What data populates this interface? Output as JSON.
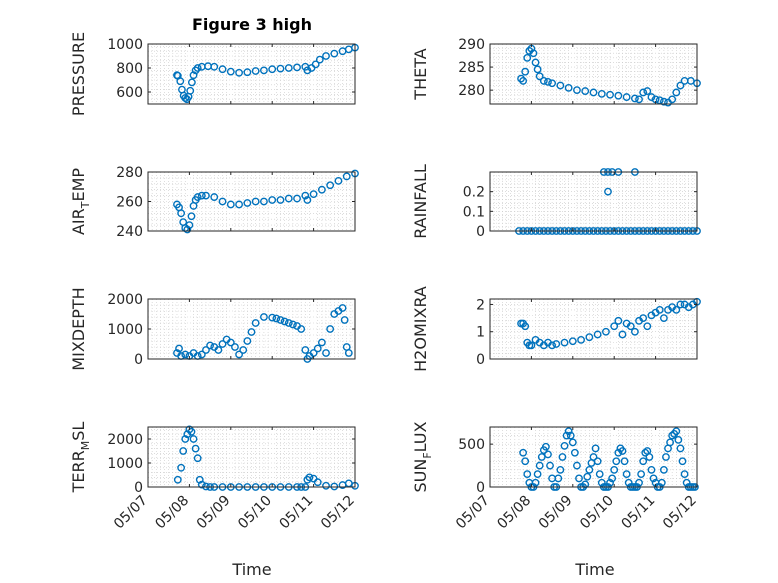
{
  "figure": {
    "title": "Figure 3 high",
    "xlabel": "Time"
  },
  "colors": {
    "marker": "#0072bd",
    "grid": "#c8c8c8",
    "axis": "#262626"
  },
  "chart_data": [
    {
      "type": "scatter",
      "title": "Figure 3 high",
      "ylabel": "PRESSURE",
      "xlabel": "",
      "xlim": [
        0,
        5
      ],
      "ylim": [
        500,
        1000
      ],
      "yticks": [
        {
          "v": 600,
          "t": "600"
        },
        {
          "v": 800,
          "t": "800"
        },
        {
          "v": 1000,
          "t": "1000"
        }
      ],
      "xticks": [
        "05/07",
        "05/08",
        "05/09",
        "05/10",
        "05/11",
        "05/12"
      ],
      "show_x_labels": false,
      "grid": true,
      "x": [
        0.7,
        0.72,
        0.78,
        0.82,
        0.86,
        0.9,
        0.94,
        0.98,
        1.02,
        1.06,
        1.1,
        1.15,
        1.2,
        1.3,
        1.45,
        1.6,
        1.8,
        2.0,
        2.2,
        2.4,
        2.6,
        2.8,
        3.0,
        3.2,
        3.4,
        3.6,
        3.8,
        3.85,
        3.95,
        4.05,
        4.15,
        4.3,
        4.5,
        4.7,
        4.85,
        5.0
      ],
      "y": [
        740,
        735,
        690,
        620,
        570,
        550,
        540,
        560,
        610,
        680,
        740,
        780,
        800,
        810,
        815,
        810,
        790,
        770,
        760,
        765,
        775,
        780,
        790,
        795,
        800,
        805,
        810,
        780,
        800,
        830,
        870,
        900,
        920,
        940,
        955,
        970
      ]
    },
    {
      "type": "scatter",
      "ylabel": "THETA",
      "xlabel": "",
      "xlim": [
        0,
        5
      ],
      "ylim": [
        277,
        290
      ],
      "yticks": [
        {
          "v": 280,
          "t": "280"
        },
        {
          "v": 285,
          "t": "285"
        },
        {
          "v": 290,
          "t": "290"
        }
      ],
      "xticks": [
        "05/07",
        "05/08",
        "05/09",
        "05/10",
        "05/11",
        "05/12"
      ],
      "show_x_labels": false,
      "grid": true,
      "x": [
        0.75,
        0.8,
        0.85,
        0.9,
        0.95,
        1.0,
        1.05,
        1.1,
        1.15,
        1.2,
        1.3,
        1.4,
        1.5,
        1.7,
        1.9,
        2.1,
        2.3,
        2.5,
        2.7,
        2.9,
        3.1,
        3.3,
        3.5,
        3.6,
        3.7,
        3.8,
        3.9,
        4.0,
        4.1,
        4.2,
        4.3,
        4.4,
        4.5,
        4.6,
        4.7,
        4.85,
        5.0
      ],
      "y": [
        282.5,
        282.0,
        284.0,
        287.0,
        288.5,
        289.0,
        288.0,
        286.0,
        284.5,
        283.0,
        282.0,
        281.8,
        281.5,
        281.0,
        280.5,
        280.0,
        279.8,
        279.5,
        279.2,
        279.0,
        278.8,
        278.5,
        278.2,
        278.0,
        279.5,
        279.8,
        278.5,
        278.0,
        277.8,
        277.5,
        277.3,
        278.0,
        279.5,
        281.0,
        282.0,
        282.0,
        281.5
      ]
    },
    {
      "type": "scatter",
      "ylabel": "AIR_TEMP",
      "xlabel": "",
      "xlim": [
        0,
        5
      ],
      "ylim": [
        240,
        280
      ],
      "yticks": [
        {
          "v": 240,
          "t": "240"
        },
        {
          "v": 260,
          "t": "260"
        },
        {
          "v": 280,
          "t": "280"
        }
      ],
      "xticks": [
        "05/07",
        "05/08",
        "05/09",
        "05/10",
        "05/11",
        "05/12"
      ],
      "show_x_labels": false,
      "grid": true,
      "x": [
        0.7,
        0.75,
        0.8,
        0.85,
        0.9,
        0.95,
        1.0,
        1.05,
        1.1,
        1.15,
        1.2,
        1.3,
        1.4,
        1.6,
        1.8,
        2.0,
        2.2,
        2.4,
        2.6,
        2.8,
        3.0,
        3.2,
        3.4,
        3.6,
        3.8,
        3.85,
        4.0,
        4.2,
        4.4,
        4.6,
        4.8,
        5.0
      ],
      "y": [
        258,
        256,
        252,
        246,
        242,
        241,
        244,
        250,
        257,
        261,
        263,
        264,
        264,
        263,
        260,
        258,
        258,
        259,
        260,
        260,
        261,
        261,
        262,
        262,
        264,
        261,
        265,
        268,
        271,
        274,
        277,
        279
      ]
    },
    {
      "type": "scatter",
      "ylabel": "RAINFALL",
      "xlabel": "",
      "xlim": [
        0,
        5
      ],
      "ylim": [
        0,
        0.3
      ],
      "yticks": [
        {
          "v": 0,
          "t": "0"
        },
        {
          "v": 0.1,
          "t": "0.1"
        },
        {
          "v": 0.2,
          "t": "0.2"
        }
      ],
      "xticks": [
        "05/07",
        "05/08",
        "05/09",
        "05/10",
        "05/11",
        "05/12"
      ],
      "show_x_labels": false,
      "grid": true,
      "x": [
        0.7,
        0.8,
        0.9,
        1.0,
        1.1,
        1.2,
        1.3,
        1.4,
        1.5,
        1.6,
        1.7,
        1.8,
        1.9,
        2.0,
        2.1,
        2.2,
        2.3,
        2.4,
        2.5,
        2.6,
        2.7,
        2.8,
        2.9,
        3.0,
        3.1,
        3.2,
        3.3,
        3.4,
        3.5,
        3.6,
        3.7,
        3.8,
        3.9,
        4.0,
        4.1,
        4.2,
        4.3,
        4.4,
        4.5,
        4.6,
        4.7,
        4.8,
        4.9,
        5.0,
        2.75,
        2.85,
        2.95,
        3.1,
        3.5,
        2.85
      ],
      "y": [
        0,
        0,
        0,
        0,
        0,
        0,
        0,
        0,
        0,
        0,
        0,
        0,
        0,
        0,
        0,
        0,
        0,
        0,
        0,
        0,
        0,
        0,
        0,
        0,
        0,
        0,
        0,
        0,
        0,
        0,
        0,
        0,
        0,
        0,
        0,
        0,
        0,
        0,
        0,
        0,
        0,
        0,
        0,
        0,
        0.3,
        0.3,
        0.3,
        0.3,
        0.3,
        0.2
      ]
    },
    {
      "type": "scatter",
      "ylabel": "MIXDEPTH",
      "xlabel": "",
      "xlim": [
        0,
        5
      ],
      "ylim": [
        0,
        2000
      ],
      "yticks": [
        {
          "v": 0,
          "t": "0"
        },
        {
          "v": 1000,
          "t": "1000"
        },
        {
          "v": 2000,
          "t": "2000"
        }
      ],
      "xticks": [
        "05/07",
        "05/08",
        "05/09",
        "05/10",
        "05/11",
        "05/12"
      ],
      "show_x_labels": false,
      "grid": true,
      "x": [
        0.7,
        0.75,
        0.8,
        0.9,
        1.0,
        1.1,
        1.2,
        1.3,
        1.4,
        1.5,
        1.6,
        1.7,
        1.8,
        1.9,
        2.0,
        2.1,
        2.2,
        2.3,
        2.4,
        2.5,
        2.6,
        2.8,
        3.0,
        3.1,
        3.2,
        3.3,
        3.4,
        3.5,
        3.6,
        3.7,
        3.8,
        3.85,
        3.9,
        4.0,
        4.1,
        4.2,
        4.3,
        4.4,
        4.5,
        4.6,
        4.7,
        4.75,
        4.8,
        4.85
      ],
      "y": [
        200,
        350,
        100,
        150,
        100,
        200,
        100,
        150,
        300,
        450,
        400,
        300,
        500,
        650,
        550,
        400,
        150,
        300,
        600,
        900,
        1200,
        1400,
        1380,
        1350,
        1300,
        1250,
        1200,
        1150,
        1100,
        1000,
        300,
        0,
        100,
        200,
        350,
        550,
        200,
        1000,
        1500,
        1600,
        1700,
        1300,
        400,
        200
      ]
    },
    {
      "type": "scatter",
      "ylabel": "H2OMIXRA",
      "xlabel": "",
      "xlim": [
        0,
        5
      ],
      "ylim": [
        0,
        2.2
      ],
      "yticks": [
        {
          "v": 0,
          "t": "0"
        },
        {
          "v": 1,
          "t": "1"
        },
        {
          "v": 2,
          "t": "2"
        }
      ],
      "xticks": [
        "05/07",
        "05/08",
        "05/09",
        "05/10",
        "05/11",
        "05/12"
      ],
      "show_x_labels": false,
      "grid": true,
      "x": [
        0.75,
        0.8,
        0.85,
        0.9,
        0.95,
        1.0,
        1.1,
        1.2,
        1.3,
        1.4,
        1.5,
        1.6,
        1.8,
        2.0,
        2.2,
        2.4,
        2.6,
        2.8,
        3.0,
        3.1,
        3.2,
        3.3,
        3.4,
        3.5,
        3.6,
        3.7,
        3.8,
        3.9,
        4.0,
        4.1,
        4.2,
        4.3,
        4.4,
        4.5,
        4.6,
        4.7,
        4.8,
        4.9,
        5.0
      ],
      "y": [
        1.3,
        1.3,
        1.2,
        0.6,
        0.5,
        0.5,
        0.7,
        0.6,
        0.5,
        0.6,
        0.5,
        0.55,
        0.6,
        0.65,
        0.7,
        0.8,
        0.9,
        1.0,
        1.2,
        1.4,
        0.9,
        1.3,
        1.2,
        1.0,
        1.4,
        1.5,
        1.2,
        1.6,
        1.7,
        1.8,
        1.5,
        1.8,
        1.9,
        1.8,
        2.0,
        2.0,
        1.9,
        2.0,
        2.1
      ]
    },
    {
      "type": "scatter",
      "ylabel": "TERR_MSL",
      "xlabel": "Time",
      "xlim": [
        0,
        5
      ],
      "ylim": [
        0,
        2500
      ],
      "yticks": [
        {
          "v": 0,
          "t": "0"
        },
        {
          "v": 1000,
          "t": "1000"
        },
        {
          "v": 2000,
          "t": "2000"
        }
      ],
      "xticks": [
        "05/07",
        "05/08",
        "05/09",
        "05/10",
        "05/11",
        "05/12"
      ],
      "show_x_labels": true,
      "grid": true,
      "x": [
        0.72,
        0.8,
        0.85,
        0.9,
        0.95,
        1.0,
        1.05,
        1.1,
        1.15,
        1.2,
        1.25,
        1.3,
        1.4,
        1.5,
        1.6,
        1.8,
        2.0,
        2.2,
        2.4,
        2.6,
        2.8,
        3.0,
        3.2,
        3.4,
        3.6,
        3.7,
        3.8,
        3.85,
        3.9,
        4.0,
        4.1,
        4.3,
        4.5,
        4.7,
        4.85,
        5.0
      ],
      "y": [
        300,
        800,
        1500,
        2000,
        2200,
        2400,
        2300,
        2000,
        1600,
        1200,
        300,
        100,
        20,
        0,
        0,
        0,
        0,
        0,
        0,
        0,
        0,
        0,
        0,
        0,
        0,
        0,
        0,
        300,
        400,
        350,
        200,
        50,
        20,
        80,
        150,
        50
      ]
    },
    {
      "type": "scatter",
      "ylabel": "SUN_FLUX",
      "xlabel": "Time",
      "xlim": [
        0,
        5
      ],
      "ylim": [
        0,
        700
      ],
      "yticks": [
        {
          "v": 0,
          "t": "0"
        },
        {
          "v": 500,
          "t": "500"
        }
      ],
      "xticks": [
        "05/07",
        "05/08",
        "05/09",
        "05/10",
        "05/11",
        "05/12"
      ],
      "show_x_labels": true,
      "grid": true,
      "x": [
        0.8,
        0.85,
        0.9,
        0.95,
        1.0,
        1.05,
        1.1,
        1.15,
        1.2,
        1.25,
        1.3,
        1.35,
        1.4,
        1.45,
        1.5,
        1.55,
        1.6,
        1.65,
        1.7,
        1.75,
        1.8,
        1.85,
        1.9,
        1.95,
        2.0,
        2.05,
        2.1,
        2.15,
        2.2,
        2.25,
        2.3,
        2.35,
        2.4,
        2.45,
        2.5,
        2.55,
        2.6,
        2.65,
        2.7,
        2.75,
        2.8,
        2.85,
        2.9,
        2.95,
        3.0,
        3.05,
        3.1,
        3.15,
        3.2,
        3.25,
        3.3,
        3.35,
        3.4,
        3.45,
        3.5,
        3.55,
        3.6,
        3.65,
        3.7,
        3.75,
        3.8,
        3.85,
        3.9,
        3.95,
        4.0,
        4.05,
        4.1,
        4.15,
        4.2,
        4.25,
        4.3,
        4.35,
        4.4,
        4.45,
        4.5,
        4.55,
        4.6,
        4.65,
        4.7,
        4.75,
        4.8,
        4.85,
        4.9,
        4.95
      ],
      "y": [
        400,
        300,
        150,
        50,
        0,
        0,
        50,
        150,
        250,
        350,
        430,
        470,
        380,
        250,
        100,
        0,
        0,
        100,
        200,
        350,
        480,
        600,
        650,
        600,
        520,
        400,
        250,
        100,
        0,
        0,
        30,
        120,
        200,
        280,
        350,
        450,
        300,
        150,
        50,
        0,
        0,
        0,
        50,
        100,
        200,
        300,
        400,
        450,
        420,
        300,
        150,
        50,
        0,
        0,
        0,
        0,
        50,
        150,
        300,
        400,
        420,
        350,
        200,
        100,
        50,
        0,
        0,
        50,
        200,
        350,
        450,
        520,
        600,
        620,
        650,
        550,
        450,
        300,
        150,
        50,
        0,
        0,
        0,
        0
      ]
    }
  ]
}
